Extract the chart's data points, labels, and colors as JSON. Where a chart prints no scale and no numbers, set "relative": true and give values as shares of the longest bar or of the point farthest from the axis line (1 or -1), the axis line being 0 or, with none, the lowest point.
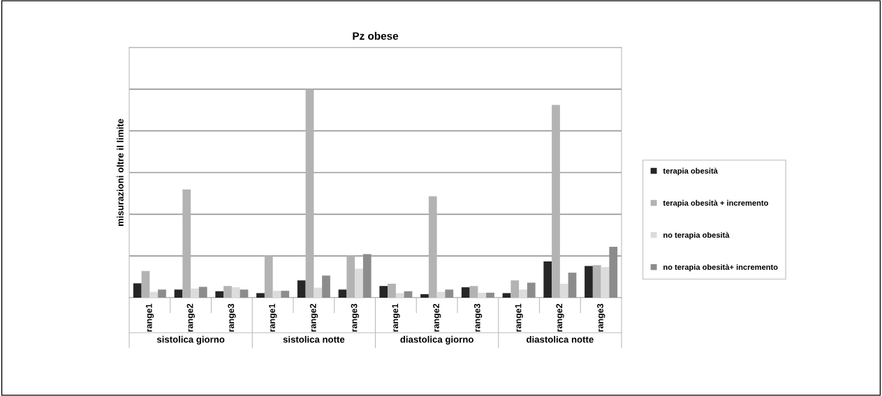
{
  "chart_data": {
    "type": "bar",
    "title": "Pz obese",
    "ylabel": "misurazioni oltre il limite",
    "relative": true,
    "grid": "y",
    "legend": "right",
    "categories": [
      "range1",
      "range2",
      "range3",
      "range1",
      "range2",
      "range3",
      "range1",
      "range2",
      "range3",
      "range1",
      "range2",
      "range3"
    ],
    "annotations": [
      "sistolica giorno",
      "sistolica notte",
      "diastolica giorno",
      "diastolica notte"
    ],
    "series": [
      {
        "name": "terapia obesità",
        "color": "#262626",
        "values": [
          0.069,
          0.039,
          0.031,
          0.022,
          0.083,
          0.039,
          0.056,
          0.017,
          0.05,
          0.022,
          0.174,
          0.152
        ]
      },
      {
        "name": "terapia obesità + incremento",
        "color": "#b3b3b3",
        "values": [
          0.128,
          0.519,
          0.056,
          0.2,
          1.0,
          0.2,
          0.067,
          0.486,
          0.056,
          0.083,
          0.924,
          0.156
        ]
      },
      {
        "name": "no terapia obesità",
        "color": "#dcdcdc",
        "values": [
          0.028,
          0.044,
          0.05,
          0.033,
          0.048,
          0.139,
          0.022,
          0.028,
          0.024,
          0.039,
          0.067,
          0.147
        ]
      },
      {
        "name": "no terapia obesità+ incremento",
        "color": "#8c8c8c",
        "values": [
          0.039,
          0.052,
          0.039,
          0.033,
          0.106,
          0.209,
          0.031,
          0.039,
          0.024,
          0.072,
          0.12,
          0.244
        ]
      }
    ]
  }
}
